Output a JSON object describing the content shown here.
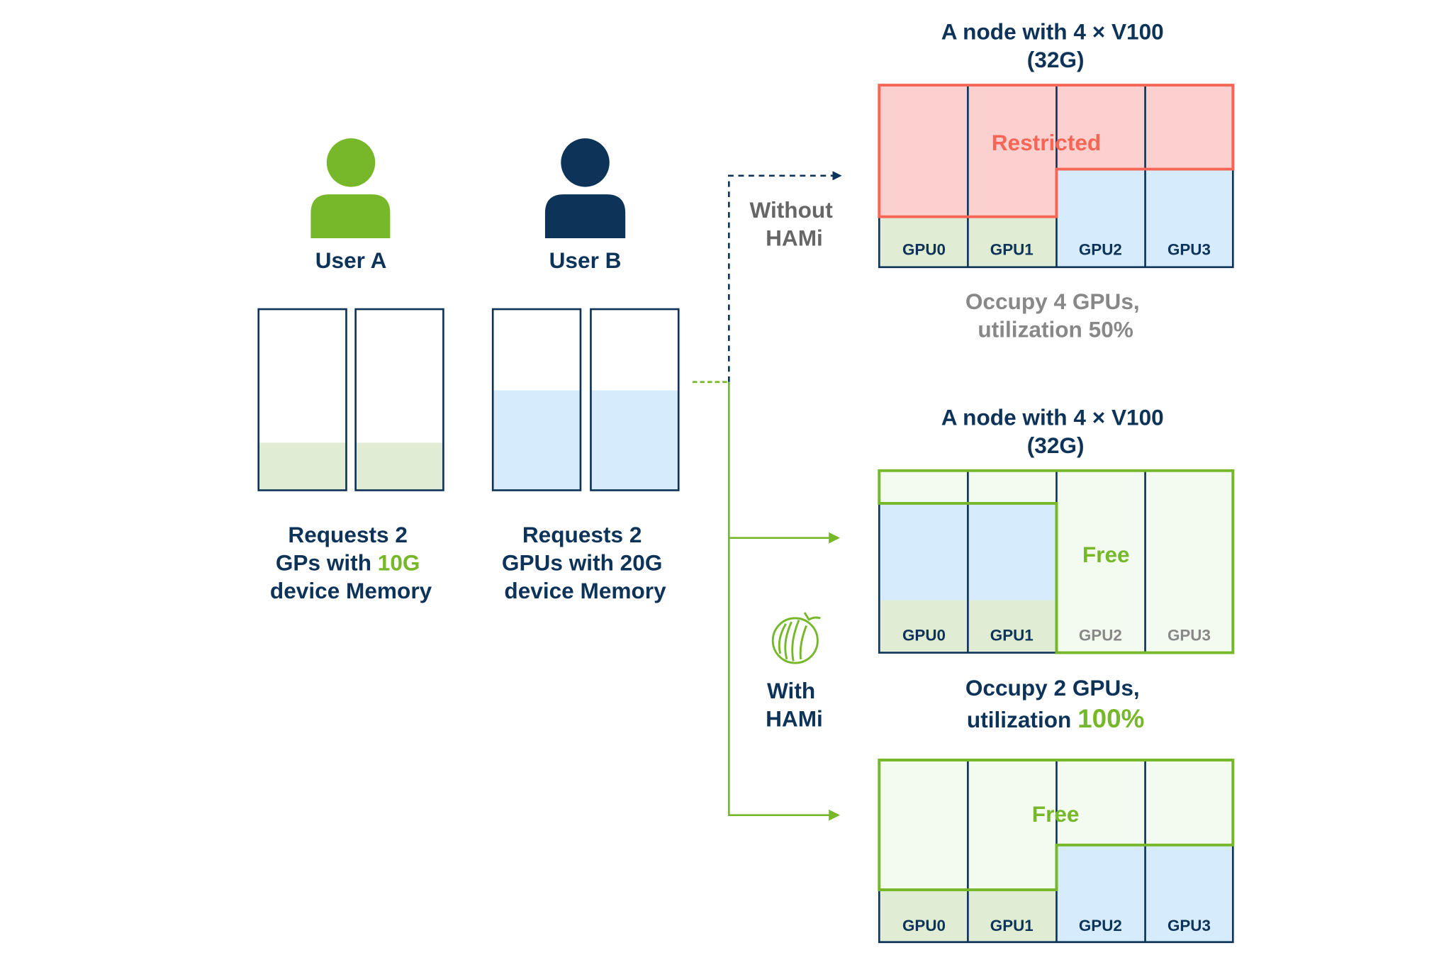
{
  "colors": {
    "navy": "#0d3358",
    "green": "#76b82a",
    "red": "#f76555",
    "pink": "#fdd0d0",
    "light_blue": "#d6ebfb",
    "light_green": "#e0ecd3",
    "free": "#f3fbf1",
    "gray": "#777777"
  },
  "users": [
    {
      "label": "User A",
      "icon": "user-icon",
      "request": {
        "line1": "Requests 2",
        "line2_pre": "GPs with ",
        "line2_hl": "10G",
        "line3": "device Memory"
      }
    },
    {
      "label": "User B",
      "icon": "user-icon",
      "request": {
        "line1": "Requests 2",
        "line2_pre": "GPUs with ",
        "line2_hl": "20G",
        "line3": "device Memory"
      }
    }
  ],
  "paths": {
    "without": {
      "line1": "Without",
      "line2": "HAMi"
    },
    "with": {
      "line1": "With",
      "line2": "HAMi",
      "icon": "hami-melon-icon"
    }
  },
  "nodes": {
    "top": {
      "title1": "A node with 4 × V100",
      "title2": "(32G)",
      "region_label": "Restricted",
      "gpus": [
        "GPU0",
        "GPU1",
        "GPU2",
        "GPU3"
      ],
      "caption1": "Occupy 4 GPUs,",
      "caption2": "utilization 50%"
    },
    "middle": {
      "title1": "A node with 4 × V100",
      "title2": "(32G)",
      "region_label": "Free",
      "gpus": [
        "GPU0",
        "GPU1",
        "GPU2",
        "GPU3"
      ],
      "caption1": "Occupy 2 GPUs,",
      "caption2_pre": "utilization ",
      "caption2_hl": "100%"
    },
    "bottom": {
      "region_label": "Free",
      "gpus": [
        "GPU0",
        "GPU1",
        "GPU2",
        "GPU3"
      ]
    }
  }
}
